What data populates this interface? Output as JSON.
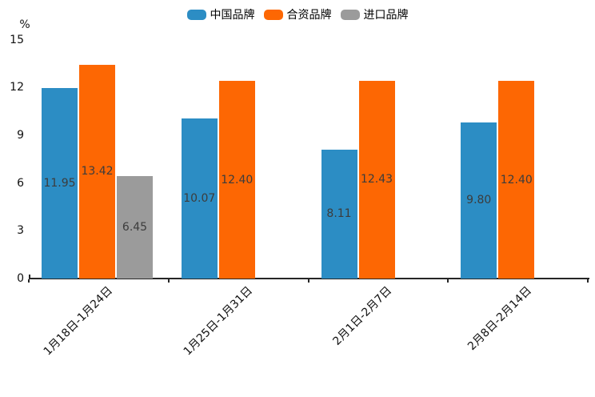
{
  "chart_data": {
    "type": "bar",
    "categories": [
      "1月18日-1月24日",
      "1月25日-1月31日",
      "2月1日-2月7日",
      "2月8日-2月14日"
    ],
    "series": [
      {
        "name": "中国品牌",
        "key": "china-brand",
        "color": "#2C8DC4",
        "values": [
          11.95,
          10.07,
          8.11,
          9.8
        ]
      },
      {
        "name": "合资品牌",
        "key": "joint-venture-brand",
        "color": "#FD6703",
        "values": [
          13.42,
          12.4,
          12.43,
          12.4
        ]
      },
      {
        "name": "进口品牌",
        "key": "import-brand",
        "color": "#9B9B9B",
        "values": [
          6.45,
          null,
          null,
          null
        ]
      }
    ],
    "title": "",
    "xlabel": "",
    "ylabel": "%",
    "yticks": [
      0,
      3,
      6,
      9,
      12,
      15
    ],
    "ylim": [
      0,
      15
    ],
    "grid": false,
    "legend_position": "top",
    "value_label_decimals": 2,
    "value_label_color": "#3C3C3C",
    "axis_color": "#262626",
    "tick_label_color": "#111111",
    "background_color": "#FFFFFF"
  }
}
